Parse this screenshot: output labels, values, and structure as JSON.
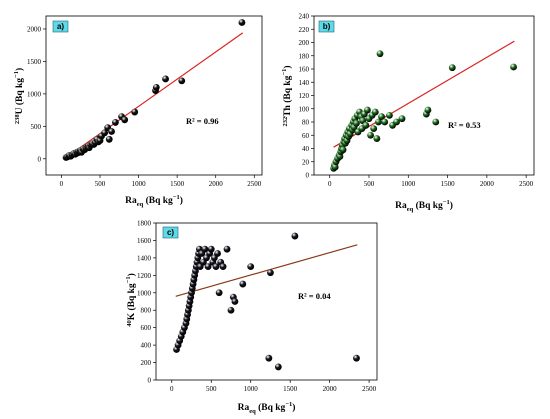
{
  "chart_data": [
    {
      "type": "scatter",
      "panel_label": "a)",
      "xlabel_main": "Ra",
      "xlabel_sub": "eq",
      "xlabel_unit": "(Bq kg",
      "xlabel_exp": "−1",
      "xlabel_close": ")",
      "ylabel_pre": "238",
      "ylabel_elem": "U",
      "ylabel_unit": " (Bq kg",
      "ylabel_exp": "−1",
      "ylabel_close": ")",
      "annotation": "R² = 0.96",
      "xlim": [
        -200,
        2600
      ],
      "ylim": [
        -250,
        2200
      ],
      "xticks": [
        0,
        500,
        1000,
        1500,
        2000,
        2500
      ],
      "yticks": [
        0,
        500,
        1000,
        1500,
        2000
      ],
      "marker_color": "#111111",
      "fit": {
        "x": [
          50,
          2350
        ],
        "y": [
          10,
          1940
        ],
        "color": "#dd2222"
      },
      "x": [
        60,
        80,
        100,
        120,
        140,
        160,
        180,
        200,
        210,
        220,
        240,
        250,
        260,
        280,
        300,
        320,
        340,
        350,
        360,
        380,
        400,
        420,
        440,
        460,
        480,
        500,
        520,
        560,
        600,
        620,
        650,
        700,
        780,
        820,
        950,
        1220,
        1230,
        1350,
        1560,
        2340
      ],
      "y": [
        20,
        30,
        50,
        40,
        60,
        80,
        70,
        100,
        90,
        110,
        120,
        130,
        100,
        150,
        140,
        160,
        180,
        200,
        170,
        210,
        230,
        220,
        250,
        300,
        260,
        280,
        350,
        400,
        480,
        300,
        420,
        560,
        650,
        600,
        720,
        1050,
        1100,
        1230,
        1200,
        2100
      ]
    },
    {
      "type": "scatter",
      "panel_label": "b)",
      "xlabel_main": "Ra",
      "xlabel_sub": "eq",
      "xlabel_unit": "(Bq kg",
      "xlabel_exp": "−1",
      "xlabel_close": ")",
      "ylabel_pre": "232",
      "ylabel_elem": "Th",
      "ylabel_unit": " (Bq kg",
      "ylabel_exp": "−1",
      "ylabel_close": ")",
      "annotation": "R² = 0.53",
      "xlim": [
        -200,
        2600
      ],
      "ylim": [
        0,
        240
      ],
      "xticks": [
        0,
        500,
        1000,
        1500,
        2000,
        2500
      ],
      "yticks": [
        0,
        20,
        40,
        60,
        80,
        100,
        120,
        140,
        160,
        180,
        200,
        220,
        240
      ],
      "marker_color": "#1f6e1f",
      "fit": {
        "x": [
          50,
          2350
        ],
        "y": [
          42,
          202
        ],
        "color": "#dd2222"
      },
      "x": [
        50,
        60,
        70,
        80,
        100,
        120,
        130,
        140,
        150,
        160,
        170,
        180,
        190,
        200,
        210,
        220,
        230,
        240,
        250,
        260,
        280,
        290,
        300,
        310,
        320,
        340,
        350,
        360,
        380,
        400,
        410,
        420,
        440,
        460,
        480,
        500,
        520,
        540,
        560,
        580,
        600,
        620,
        640,
        660,
        700,
        760,
        800,
        850,
        920,
        1230,
        1250,
        1350,
        1560,
        2340
      ],
      "y": [
        10,
        15,
        12,
        20,
        25,
        30,
        28,
        35,
        40,
        45,
        38,
        50,
        55,
        48,
        60,
        52,
        65,
        58,
        70,
        62,
        75,
        68,
        80,
        72,
        85,
        78,
        90,
        65,
        95,
        88,
        70,
        82,
        92,
        75,
        98,
        85,
        60,
        90,
        70,
        95,
        55,
        80,
        183,
        88,
        80,
        90,
        75,
        80,
        85,
        92,
        98,
        80,
        162,
        163
      ]
    },
    {
      "type": "scatter",
      "panel_label": "c)",
      "xlabel_main": "Ra",
      "xlabel_sub": "eq",
      "xlabel_unit": "(Bq kg",
      "xlabel_exp": "−1",
      "xlabel_close": ")",
      "ylabel_pre": "40",
      "ylabel_elem": "K",
      "ylabel_unit": " (Bq kg",
      "ylabel_exp": "−1",
      "ylabel_close": ")",
      "annotation": "R² = 0.04",
      "xlim": [
        -200,
        2600
      ],
      "ylim": [
        0,
        1800
      ],
      "xticks": [
        0,
        500,
        1000,
        1500,
        2000,
        2500
      ],
      "yticks": [
        0,
        200,
        400,
        600,
        800,
        1000,
        1200,
        1400,
        1600,
        1800
      ],
      "marker_color": "#151520",
      "fit": {
        "x": [
          50,
          2350
        ],
        "y": [
          960,
          1550
        ],
        "color": "#8b3a1a"
      },
      "x": [
        60,
        80,
        100,
        120,
        140,
        160,
        180,
        190,
        200,
        210,
        220,
        230,
        240,
        250,
        260,
        270,
        280,
        290,
        300,
        310,
        320,
        330,
        340,
        350,
        360,
        380,
        400,
        420,
        440,
        460,
        480,
        500,
        520,
        540,
        560,
        580,
        600,
        620,
        650,
        700,
        750,
        780,
        800,
        900,
        1000,
        1230,
        1250,
        1350,
        1560,
        2340
      ],
      "y": [
        350,
        400,
        450,
        500,
        550,
        600,
        650,
        700,
        750,
        800,
        850,
        900,
        950,
        1000,
        1050,
        1100,
        1150,
        1200,
        1250,
        1300,
        1350,
        1400,
        1450,
        1500,
        1300,
        1450,
        1350,
        1500,
        1400,
        1300,
        1450,
        1500,
        1350,
        1400,
        1300,
        1450,
        1000,
        1350,
        1300,
        1500,
        800,
        950,
        900,
        1100,
        1300,
        250,
        1230,
        150,
        1650,
        250
      ]
    }
  ]
}
